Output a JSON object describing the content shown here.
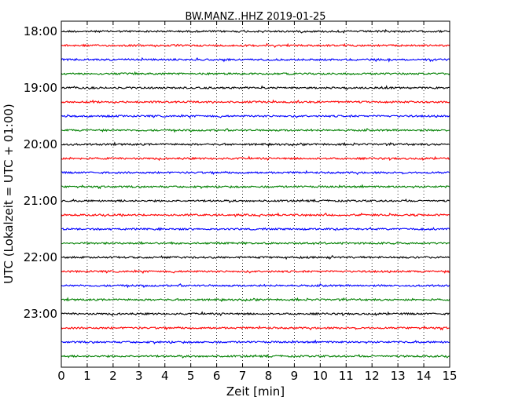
{
  "chart_data": {
    "type": "line",
    "subtype": "helicorder",
    "title": "BW.MANZ..HHZ 2019-01-25",
    "xlabel": "Zeit  [min]",
    "ylabel": "UTC (Lokalzeit = UTC + 01:00)",
    "xlim": [
      0,
      15
    ],
    "x_ticks": [
      "0",
      "1",
      "2",
      "3",
      "4",
      "5",
      "6",
      "7",
      "8",
      "9",
      "10",
      "11",
      "12",
      "13",
      "14",
      "15"
    ],
    "y_tick_labels": [
      "18:00",
      "19:00",
      "20:00",
      "21:00",
      "22:00",
      "23:00"
    ],
    "trace_interval_minutes": 15,
    "grid": "vertical dotted at each minute",
    "trace_colors": [
      "#000000",
      "#ff0000",
      "#0000ff",
      "#008000"
    ],
    "traces": [
      {
        "start": "18:00",
        "color": "#000000"
      },
      {
        "start": "18:15",
        "color": "#ff0000"
      },
      {
        "start": "18:30",
        "color": "#0000ff"
      },
      {
        "start": "18:45",
        "color": "#008000"
      },
      {
        "start": "19:00",
        "color": "#000000"
      },
      {
        "start": "19:15",
        "color": "#ff0000"
      },
      {
        "start": "19:30",
        "color": "#0000ff"
      },
      {
        "start": "19:45",
        "color": "#008000"
      },
      {
        "start": "20:00",
        "color": "#000000"
      },
      {
        "start": "20:15",
        "color": "#ff0000"
      },
      {
        "start": "20:30",
        "color": "#0000ff"
      },
      {
        "start": "20:45",
        "color": "#008000"
      },
      {
        "start": "21:00",
        "color": "#000000"
      },
      {
        "start": "21:15",
        "color": "#ff0000"
      },
      {
        "start": "21:30",
        "color": "#0000ff"
      },
      {
        "start": "21:45",
        "color": "#008000"
      },
      {
        "start": "22:00",
        "color": "#000000"
      },
      {
        "start": "22:15",
        "color": "#ff0000"
      },
      {
        "start": "22:30",
        "color": "#0000ff"
      },
      {
        "start": "22:45",
        "color": "#008000"
      },
      {
        "start": "23:00",
        "color": "#000000"
      },
      {
        "start": "23:15",
        "color": "#ff0000"
      },
      {
        "start": "23:30",
        "color": "#0000ff"
      },
      {
        "start": "23:45",
        "color": "#008000"
      }
    ]
  }
}
